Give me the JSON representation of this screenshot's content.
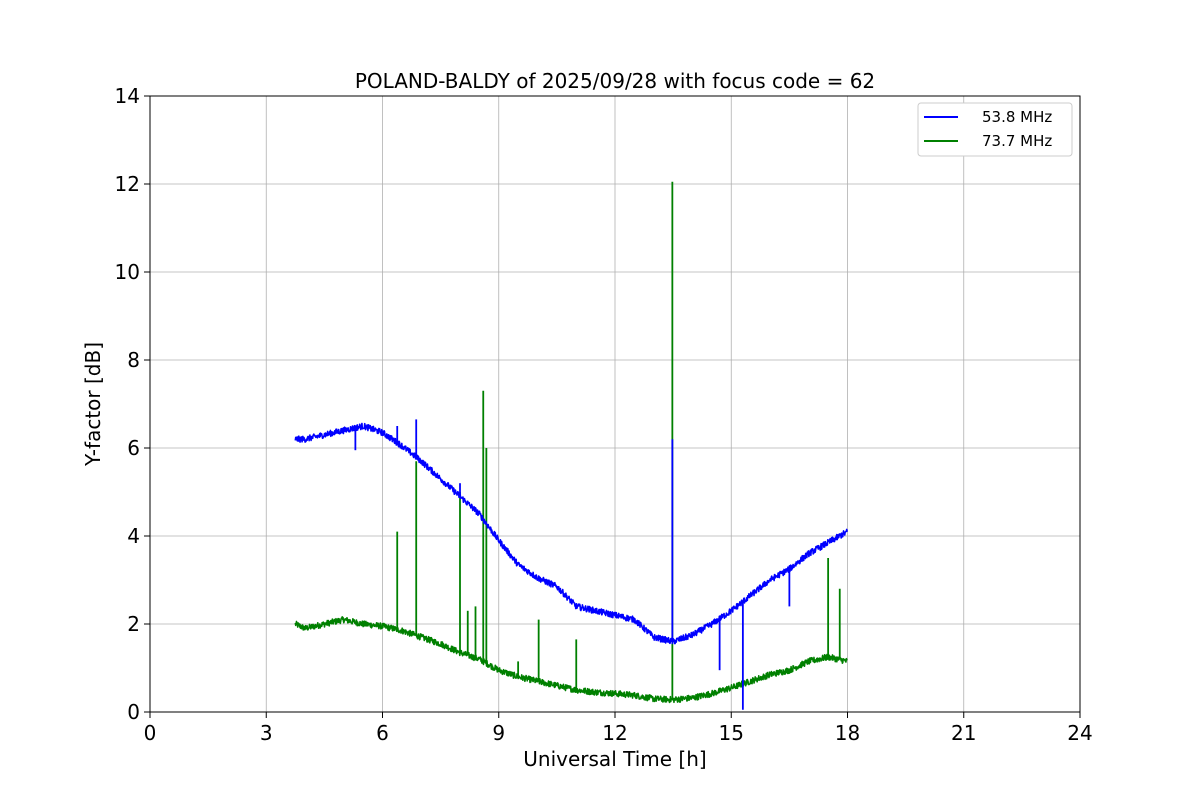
{
  "chart_data": {
    "type": "line",
    "title": "POLAND-BALDY of 2025/09/28 with focus code = 62",
    "xlabel": "Universal Time [h]",
    "ylabel": "Y-factor [dB]",
    "xlim": [
      0,
      24
    ],
    "ylim": [
      0,
      14
    ],
    "xticks": [
      0,
      3,
      6,
      9,
      12,
      15,
      18,
      21,
      24
    ],
    "yticks": [
      0,
      2,
      4,
      6,
      8,
      10,
      12,
      14
    ],
    "xtick_labels": [
      "0",
      "3",
      "6",
      "9",
      "12",
      "15",
      "18",
      "21",
      "24"
    ],
    "ytick_labels": [
      "0",
      "2",
      "4",
      "6",
      "8",
      "10",
      "12",
      "14"
    ],
    "grid": true,
    "legend_position": "top-right",
    "series": [
      {
        "name": "53.8 MHz",
        "color": "#0000ff",
        "x": [
          3.75,
          4.0,
          4.5,
          5.0,
          5.5,
          6.0,
          6.5,
          7.0,
          7.5,
          8.0,
          8.5,
          9.0,
          9.5,
          10.0,
          10.5,
          11.0,
          11.5,
          12.0,
          12.5,
          13.0,
          13.5,
          14.0,
          14.5,
          15.0,
          15.5,
          16.0,
          16.5,
          17.0,
          17.5,
          18.0
        ],
        "values": [
          6.2,
          6.2,
          6.3,
          6.4,
          6.5,
          6.35,
          6.05,
          5.7,
          5.3,
          4.9,
          4.5,
          3.9,
          3.35,
          3.05,
          2.85,
          2.4,
          2.3,
          2.2,
          2.1,
          1.7,
          1.6,
          1.75,
          2.0,
          2.3,
          2.65,
          3.0,
          3.25,
          3.6,
          3.85,
          4.1
        ]
      },
      {
        "name": "73.7 MHz",
        "color": "#008000",
        "x": [
          3.75,
          4.0,
          4.5,
          5.0,
          5.5,
          6.0,
          6.5,
          7.0,
          7.5,
          8.0,
          8.5,
          9.0,
          9.5,
          10.0,
          10.5,
          11.0,
          11.5,
          12.0,
          12.5,
          13.0,
          13.5,
          14.0,
          14.5,
          15.0,
          15.5,
          16.0,
          16.5,
          17.0,
          17.5,
          18.0
        ],
        "values": [
          2.0,
          1.9,
          2.0,
          2.1,
          2.0,
          1.95,
          1.85,
          1.7,
          1.55,
          1.35,
          1.2,
          0.95,
          0.8,
          0.7,
          0.6,
          0.5,
          0.45,
          0.42,
          0.38,
          0.3,
          0.28,
          0.32,
          0.42,
          0.55,
          0.7,
          0.85,
          0.95,
          1.15,
          1.25,
          1.15
        ]
      }
    ],
    "spikes": [
      {
        "series": "73.7 MHz",
        "x": 6.38,
        "y": 4.1
      },
      {
        "series": "73.7 MHz",
        "x": 6.87,
        "y": 5.7
      },
      {
        "series": "73.7 MHz",
        "x": 8.0,
        "y": 5.0
      },
      {
        "series": "73.7 MHz",
        "x": 8.2,
        "y": 2.3
      },
      {
        "series": "73.7 MHz",
        "x": 8.4,
        "y": 2.4
      },
      {
        "series": "73.7 MHz",
        "x": 8.6,
        "y": 7.3
      },
      {
        "series": "73.7 MHz",
        "x": 8.68,
        "y": 6.0
      },
      {
        "series": "73.7 MHz",
        "x": 9.5,
        "y": 1.15
      },
      {
        "series": "73.7 MHz",
        "x": 10.03,
        "y": 2.1
      },
      {
        "series": "73.7 MHz",
        "x": 11.0,
        "y": 1.65
      },
      {
        "series": "73.7 MHz",
        "x": 13.48,
        "y": 12.05
      },
      {
        "series": "73.7 MHz",
        "x": 17.5,
        "y": 3.5
      },
      {
        "series": "73.7 MHz",
        "x": 17.8,
        "y": 2.8
      },
      {
        "series": "53.8 MHz",
        "x": 6.38,
        "y": 6.5
      },
      {
        "series": "53.8 MHz",
        "x": 6.87,
        "y": 6.65
      },
      {
        "series": "53.8 MHz",
        "x": 8.0,
        "y": 5.2
      },
      {
        "series": "53.8 MHz",
        "x": 13.48,
        "y": 6.2
      },
      {
        "series": "53.8 MHz",
        "x": 5.3,
        "y": 5.95
      },
      {
        "series": "53.8 MHz",
        "x": 14.7,
        "y": 0.95
      },
      {
        "series": "53.8 MHz",
        "x": 15.3,
        "y": 0.05
      },
      {
        "series": "53.8 MHz",
        "x": 16.5,
        "y": 2.4
      }
    ]
  }
}
